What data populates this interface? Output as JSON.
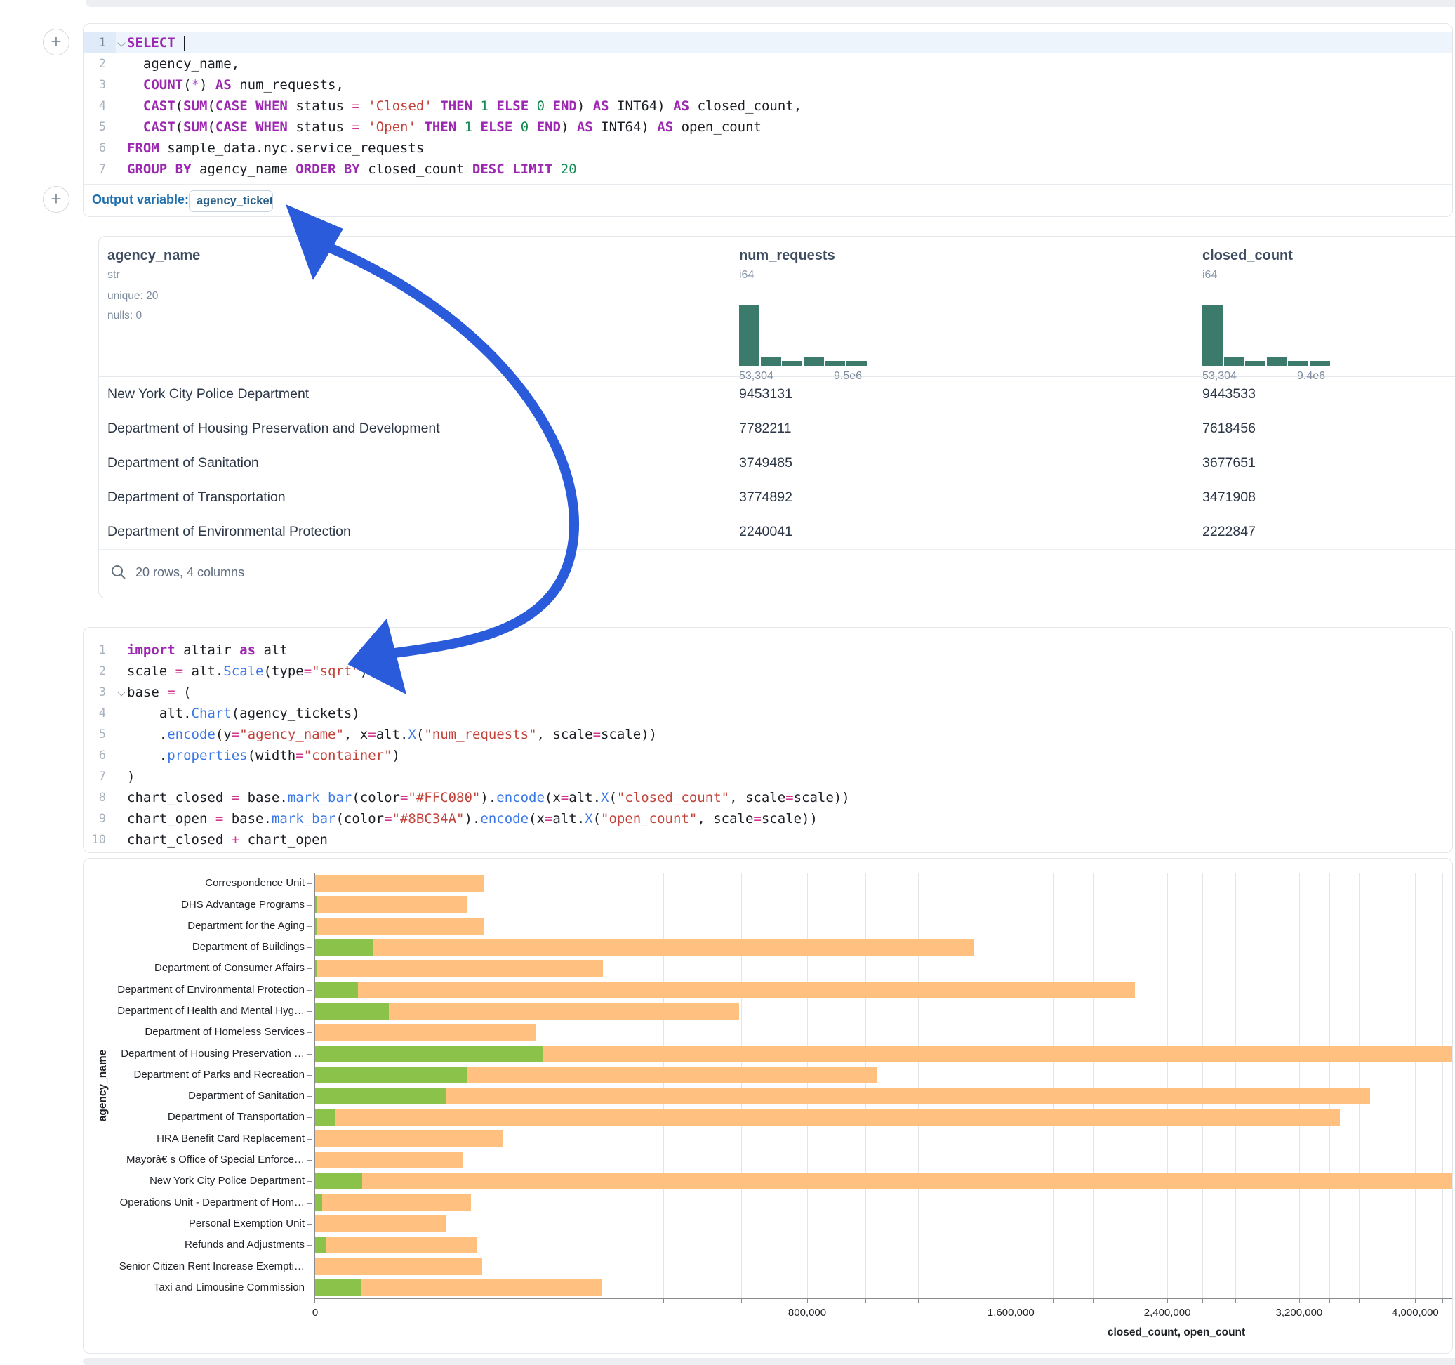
{
  "sql_cell": {
    "lines": [
      {
        "n": "1",
        "fold": true,
        "active": true,
        "caret": true,
        "tokens": [
          [
            "kw",
            "SELECT"
          ],
          [
            "pl",
            " "
          ]
        ]
      },
      {
        "n": "2",
        "tokens": [
          [
            "pl",
            "  agency_name,"
          ]
        ]
      },
      {
        "n": "3",
        "tokens": [
          [
            "pl",
            "  "
          ],
          [
            "kw",
            "COUNT"
          ],
          [
            "pl",
            "("
          ],
          [
            "st",
            "*"
          ],
          [
            "pl",
            ") "
          ],
          [
            "kw",
            "AS"
          ],
          [
            "pl",
            " num_requests,"
          ]
        ]
      },
      {
        "n": "4",
        "tokens": [
          [
            "pl",
            "  "
          ],
          [
            "kw",
            "CAST"
          ],
          [
            "pl",
            "("
          ],
          [
            "kw",
            "SUM"
          ],
          [
            "pl",
            "("
          ],
          [
            "kw",
            "CASE"
          ],
          [
            "pl",
            " "
          ],
          [
            "kw",
            "WHEN"
          ],
          [
            "pl",
            " status "
          ],
          [
            "op",
            "="
          ],
          [
            "pl",
            " "
          ],
          [
            "str",
            "'Closed'"
          ],
          [
            "pl",
            " "
          ],
          [
            "kw",
            "THEN"
          ],
          [
            "pl",
            " "
          ],
          [
            "num",
            "1"
          ],
          [
            "pl",
            " "
          ],
          [
            "kw",
            "ELSE"
          ],
          [
            "pl",
            " "
          ],
          [
            "num",
            "0"
          ],
          [
            "pl",
            " "
          ],
          [
            "kw",
            "END"
          ],
          [
            "pl",
            ") "
          ],
          [
            "kw",
            "AS"
          ],
          [
            "pl",
            " INT64) "
          ],
          [
            "kw",
            "AS"
          ],
          [
            "pl",
            " closed_count,"
          ]
        ]
      },
      {
        "n": "5",
        "tokens": [
          [
            "pl",
            "  "
          ],
          [
            "kw",
            "CAST"
          ],
          [
            "pl",
            "("
          ],
          [
            "kw",
            "SUM"
          ],
          [
            "pl",
            "("
          ],
          [
            "kw",
            "CASE"
          ],
          [
            "pl",
            " "
          ],
          [
            "kw",
            "WHEN"
          ],
          [
            "pl",
            " status "
          ],
          [
            "op",
            "="
          ],
          [
            "pl",
            " "
          ],
          [
            "str",
            "'Open'"
          ],
          [
            "pl",
            " "
          ],
          [
            "kw",
            "THEN"
          ],
          [
            "pl",
            " "
          ],
          [
            "num",
            "1"
          ],
          [
            "pl",
            " "
          ],
          [
            "kw",
            "ELSE"
          ],
          [
            "pl",
            " "
          ],
          [
            "num",
            "0"
          ],
          [
            "pl",
            " "
          ],
          [
            "kw",
            "END"
          ],
          [
            "pl",
            ") "
          ],
          [
            "kw",
            "AS"
          ],
          [
            "pl",
            " INT64) "
          ],
          [
            "kw",
            "AS"
          ],
          [
            "pl",
            " open_count"
          ]
        ]
      },
      {
        "n": "6",
        "tokens": [
          [
            "kw",
            "FROM"
          ],
          [
            "pl",
            " sample_data.nyc.service_requests"
          ]
        ]
      },
      {
        "n": "7",
        "tokens": [
          [
            "kw",
            "GROUP BY"
          ],
          [
            "pl",
            " agency_name "
          ],
          [
            "kw",
            "ORDER BY"
          ],
          [
            "pl",
            " closed_count "
          ],
          [
            "kw",
            "DESC"
          ],
          [
            "pl",
            " "
          ],
          [
            "kw",
            "LIMIT"
          ],
          [
            "pl",
            " "
          ],
          [
            "num",
            "20"
          ]
        ]
      }
    ]
  },
  "output_variable": {
    "label": "Output variable:",
    "value": "agency_tickets"
  },
  "table": {
    "columns": [
      {
        "name": "agency_name",
        "type": "str",
        "stats": [
          "unique: 20",
          "nulls: 0"
        ]
      },
      {
        "name": "num_requests",
        "type": "i64",
        "hist": [
          100,
          15,
          8,
          15,
          8,
          8
        ],
        "hist_min": "53,304",
        "hist_max": "9.5e6"
      },
      {
        "name": "closed_count",
        "type": "i64",
        "hist": [
          100,
          15,
          8,
          15,
          8,
          8
        ],
        "hist_min": "53,304",
        "hist_max": "9.4e6"
      }
    ],
    "rows": [
      [
        "New York City Police Department",
        "9453131",
        "9443533"
      ],
      [
        "Department of Housing Preservation and Development",
        "7782211",
        "7618456"
      ],
      [
        "Department of Sanitation",
        "3749485",
        "3677651"
      ],
      [
        "Department of Transportation",
        "3774892",
        "3471908"
      ],
      [
        "Department of Environmental Protection",
        "2240041",
        "2222847"
      ]
    ],
    "footer": "20 rows, 4 columns"
  },
  "py_cell": {
    "lines": [
      {
        "n": "1",
        "tokens": [
          [
            "kw",
            "import"
          ],
          [
            "pl",
            " altair "
          ],
          [
            "kw",
            "as"
          ],
          [
            "pl",
            " alt"
          ]
        ]
      },
      {
        "n": "2",
        "tokens": [
          [
            "pl",
            "scale "
          ],
          [
            "op",
            "="
          ],
          [
            "pl",
            " alt."
          ],
          [
            "fn",
            "Scale"
          ],
          [
            "pl",
            "(type"
          ],
          [
            "op",
            "="
          ],
          [
            "str",
            "\"sqrt\""
          ],
          [
            "pl",
            ")"
          ]
        ]
      },
      {
        "n": "3",
        "fold": true,
        "tokens": [
          [
            "pl",
            "base "
          ],
          [
            "op",
            "="
          ],
          [
            "pl",
            " ("
          ]
        ]
      },
      {
        "n": "4",
        "tokens": [
          [
            "pl",
            "    alt."
          ],
          [
            "fn",
            "Chart"
          ],
          [
            "pl",
            "(agency_tickets)"
          ]
        ]
      },
      {
        "n": "5",
        "tokens": [
          [
            "pl",
            "    ."
          ],
          [
            "fn",
            "encode"
          ],
          [
            "pl",
            "(y"
          ],
          [
            "op",
            "="
          ],
          [
            "str",
            "\"agency_name\""
          ],
          [
            "pl",
            ", x"
          ],
          [
            "op",
            "="
          ],
          [
            "pl",
            "alt."
          ],
          [
            "fn",
            "X"
          ],
          [
            "pl",
            "("
          ],
          [
            "str",
            "\"num_requests\""
          ],
          [
            "pl",
            ", scale"
          ],
          [
            "op",
            "="
          ],
          [
            "pl",
            "scale))"
          ]
        ]
      },
      {
        "n": "6",
        "tokens": [
          [
            "pl",
            "    ."
          ],
          [
            "fn",
            "properties"
          ],
          [
            "pl",
            "(width"
          ],
          [
            "op",
            "="
          ],
          [
            "str",
            "\"container\""
          ],
          [
            "pl",
            ")"
          ]
        ]
      },
      {
        "n": "7",
        "tokens": [
          [
            "pl",
            ")"
          ]
        ]
      },
      {
        "n": "8",
        "tokens": [
          [
            "pl",
            "chart_closed "
          ],
          [
            "op",
            "="
          ],
          [
            "pl",
            " base."
          ],
          [
            "fn",
            "mark_bar"
          ],
          [
            "pl",
            "(color"
          ],
          [
            "op",
            "="
          ],
          [
            "str",
            "\"#FFC080\""
          ],
          [
            "pl",
            ")."
          ],
          [
            "fn",
            "encode"
          ],
          [
            "pl",
            "(x"
          ],
          [
            "op",
            "="
          ],
          [
            "pl",
            "alt."
          ],
          [
            "fn",
            "X"
          ],
          [
            "pl",
            "("
          ],
          [
            "str",
            "\"closed_count\""
          ],
          [
            "pl",
            ", scale"
          ],
          [
            "op",
            "="
          ],
          [
            "pl",
            "scale))"
          ]
        ]
      },
      {
        "n": "9",
        "tokens": [
          [
            "pl",
            "chart_open "
          ],
          [
            "op",
            "="
          ],
          [
            "pl",
            " base."
          ],
          [
            "fn",
            "mark_bar"
          ],
          [
            "pl",
            "(color"
          ],
          [
            "op",
            "="
          ],
          [
            "str",
            "\"#8BC34A\""
          ],
          [
            "pl",
            ")."
          ],
          [
            "fn",
            "encode"
          ],
          [
            "pl",
            "(x"
          ],
          [
            "op",
            "="
          ],
          [
            "pl",
            "alt."
          ],
          [
            "fn",
            "X"
          ],
          [
            "pl",
            "("
          ],
          [
            "str",
            "\"open_count\""
          ],
          [
            "pl",
            ", scale"
          ],
          [
            "op",
            "="
          ],
          [
            "pl",
            "scale))"
          ]
        ]
      },
      {
        "n": "10",
        "tokens": [
          [
            "pl",
            "chart_closed "
          ],
          [
            "op",
            "+"
          ],
          [
            "pl",
            " chart_open"
          ]
        ]
      }
    ]
  },
  "chart_data": {
    "type": "bar",
    "orientation": "horizontal",
    "x_scale": "sqrt",
    "xlabel": "closed_count, open_count",
    "ylabel": "agency_name",
    "grid": true,
    "grid_step": 200000,
    "x_ticks": {
      "values": [
        0,
        800000,
        1600000,
        2400000,
        3200000,
        4000000
      ],
      "labels": [
        "0",
        "800,000",
        "1,600,000",
        "2,400,000",
        "3,200,000",
        "4,000,000"
      ]
    },
    "categories": [
      "Correspondence Unit",
      "DHS Advantage Programs",
      "Department for the Aging",
      "Department of Buildings",
      "Department of Consumer Affairs",
      "Department of Environmental Protection",
      "Department of Health and Mental Hyg…",
      "Department of Homeless Services",
      "Department of Housing Preservation …",
      "Department of Parks and Recreation",
      "Department of Sanitation",
      "Department of Transportation",
      "HRA Benefit Card Replacement",
      "Mayorâ€ s Office of Special Enforce…",
      "New York City Police Department",
      "Operations Unit - Department of Hom…",
      "Personal Exemption Unit",
      "Refunds and Adjustments",
      "Senior Citizen Rent Increase Exempti…",
      "Taxi and Limousine Commission"
    ],
    "series": [
      {
        "name": "closed_count",
        "color": "#FFC080",
        "values": [
          94600,
          76900,
          93800,
          1436000,
          273600,
          2222847,
          594000,
          161400,
          7618456,
          1044500,
          3677651,
          3471908,
          116100,
          71800,
          9443533,
          80200,
          56900,
          86900,
          92000,
          272000
        ]
      },
      {
        "name": "open_count",
        "color": "#8BC34A",
        "values": [
          0,
          8,
          8,
          11200,
          8,
          6060,
          18100,
          0,
          171000,
          76900,
          57000,
          1280,
          0,
          0,
          7200,
          163,
          0,
          366,
          0,
          7000
        ]
      }
    ]
  },
  "colors": {
    "bar_closed": "#FFC080",
    "bar_open": "#8BC34A",
    "histogram": "#3C7A6C",
    "arrow": "#2A5BDB",
    "accent_blue": "#1E6FAD"
  }
}
